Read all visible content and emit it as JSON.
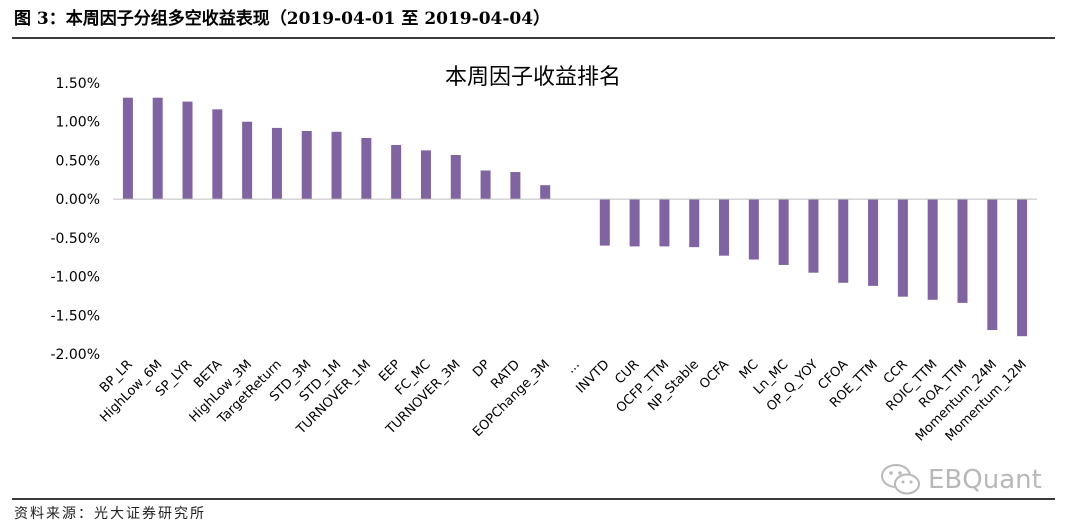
{
  "figure": {
    "caption": "图 3：本周因子分组多空收益表现（2019-04-01 至 2019-04-04）",
    "source": "资料来源：光大证券研究所",
    "watermark": "EBQuant"
  },
  "chart_data": {
    "type": "bar",
    "title": "本周因子收益排名",
    "xlabel": "",
    "ylabel": "",
    "ylim": [
      -2.0,
      1.5
    ],
    "yticks": [
      "1.50%",
      "1.00%",
      "0.50%",
      "0.00%",
      "-0.50%",
      "-1.00%",
      "-1.50%",
      "-2.00%"
    ],
    "ytick_values": [
      1.5,
      1.0,
      0.5,
      0.0,
      -0.5,
      -1.0,
      -1.5,
      -2.0
    ],
    "value_unit": "%",
    "grid": false,
    "bar_color": "#8064a2",
    "categories": [
      "BP_LR",
      "HighLow_6M",
      "SP_LYR",
      "BETA",
      "HighLow_3M",
      "TargetReturn",
      "STD_3M",
      "STD_1M",
      "TURNOVER_1M",
      "EEP",
      "FC_MC",
      "TURNOVER_3M",
      "DP",
      "RATD",
      "EOPChange_3M",
      "...",
      "INVTD",
      "CUR",
      "OCFP_TTM",
      "NP_Stable",
      "OCFA",
      "MC",
      "Ln_MC",
      "OP_Q_YOY",
      "CFOA",
      "ROE_TTM",
      "CCR",
      "ROIC_TTM",
      "ROA_TTM",
      "Momentum_24M",
      "Momentum_12M"
    ],
    "values": [
      1.31,
      1.31,
      1.26,
      1.16,
      1.0,
      0.92,
      0.88,
      0.87,
      0.79,
      0.7,
      0.63,
      0.57,
      0.37,
      0.35,
      0.18,
      null,
      -0.6,
      -0.61,
      -0.61,
      -0.62,
      -0.73,
      -0.78,
      -0.85,
      -0.95,
      -1.08,
      -1.12,
      -1.26,
      -1.3,
      -1.34,
      -1.69,
      -1.77
    ]
  }
}
